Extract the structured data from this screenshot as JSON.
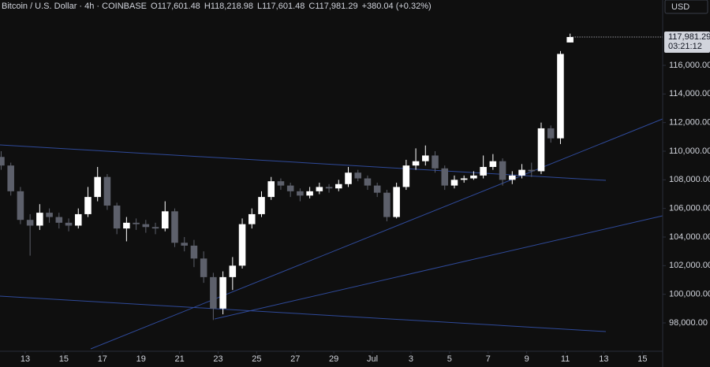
{
  "chart_data": {
    "type": "candlestick",
    "header": {
      "symbol": "Bitcoin / U.S. Dollar · 4h · COINBASE",
      "open_label": "O",
      "open": "117,601.48",
      "high_label": "H",
      "high": "118,218.98",
      "low_label": "L",
      "low": "117,601.48",
      "close_label": "C",
      "close": "117,981.29",
      "change": "+380.04 (+0.32%)"
    },
    "currency": "USD",
    "last_price_label": "117,981.29",
    "countdown": "03:21:12",
    "up_color": "#ffffff",
    "down_color": "#5d606b",
    "grid": false,
    "xlim": [
      11.69,
      46.05
    ],
    "ylim": [
      96018,
      120569
    ],
    "xticks": [
      13,
      15,
      17,
      19,
      21,
      23,
      25,
      27,
      29,
      {
        "value": 31,
        "label": "Jul"
      },
      {
        "value": 33,
        "label": "3"
      },
      {
        "value": 35,
        "label": "5"
      },
      {
        "value": 37,
        "label": "7"
      },
      {
        "value": 39,
        "label": "9"
      },
      {
        "value": 41,
        "label": "11"
      },
      {
        "value": 43,
        "label": "13"
      },
      {
        "value": 45,
        "label": "15"
      }
    ],
    "yticks": [
      {
        "value": 98000,
        "label": "98,000.00"
      },
      {
        "value": 100000,
        "label": "100,000.00"
      },
      {
        "value": 102000,
        "label": "102,000.00"
      },
      {
        "value": 104000,
        "label": "104,000.00"
      },
      {
        "value": 106000,
        "label": "106,000.00"
      },
      {
        "value": 108000,
        "label": "108,000.00"
      },
      {
        "value": 110000,
        "label": "110,000.00"
      },
      {
        "value": 112000,
        "label": "112,000.00"
      },
      {
        "value": 114000,
        "label": "114,000.00"
      },
      {
        "value": 116000,
        "label": "116,000.00"
      }
    ],
    "x": [
      11.75,
      12.25,
      12.75,
      13.25,
      13.75,
      14.25,
      14.75,
      15.25,
      15.75,
      16.25,
      16.75,
      17.25,
      17.75,
      18.25,
      18.75,
      19.25,
      19.75,
      20.25,
      20.75,
      21.25,
      21.75,
      22.25,
      22.75,
      23.25,
      23.75,
      24.25,
      24.75,
      25.25,
      25.75,
      26.25,
      26.75,
      27.25,
      27.75,
      28.25,
      28.75,
      29.25,
      29.75,
      30.25,
      30.75,
      31.25,
      31.75,
      32.25,
      32.75,
      33.25,
      33.75,
      34.25,
      34.75,
      35.25,
      35.75,
      36.25,
      36.75,
      37.25,
      37.75,
      38.25,
      38.75,
      39.25,
      39.75,
      40.25,
      40.75,
      41.25
    ],
    "open": [
      109600,
      109000,
      107200,
      105200,
      104800,
      105700,
      105400,
      105000,
      104800,
      105600,
      106800,
      108200,
      106200,
      104600,
      105000,
      104900,
      104700,
      104600,
      105800,
      103600,
      103400,
      102500,
      101200,
      99000,
      101200,
      102000,
      104900,
      105600,
      106800,
      107900,
      107600,
      107200,
      106900,
      107200,
      107500,
      107400,
      107700,
      108500,
      108100,
      107600,
      107100,
      105400,
      107500,
      109000,
      109300,
      109700,
      108800,
      107600,
      108000,
      108100,
      108300,
      108900,
      109300,
      108000,
      108300,
      108700,
      108600,
      111600,
      110900,
      117601.48
    ],
    "high": [
      110000,
      109200,
      107500,
      105600,
      106300,
      106000,
      105700,
      105300,
      106000,
      107500,
      108900,
      108400,
      106400,
      105400,
      105300,
      105200,
      105000,
      106500,
      106000,
      104000,
      103800,
      103000,
      101500,
      101600,
      102600,
      105300,
      106000,
      107200,
      108200,
      108100,
      107800,
      107400,
      107500,
      107800,
      107700,
      108000,
      108900,
      108700,
      108300,
      107800,
      107300,
      107800,
      109400,
      110200,
      110400,
      110000,
      109000,
      108300,
      108300,
      108600,
      109700,
      109800,
      109500,
      108600,
      109100,
      109200,
      112000,
      111800,
      117000,
      118218.98
    ],
    "low": [
      108700,
      106900,
      104900,
      102700,
      104500,
      105000,
      104600,
      104400,
      104600,
      105400,
      106500,
      105900,
      104200,
      103700,
      104500,
      104300,
      104200,
      104400,
      103300,
      103000,
      101900,
      100800,
      98200,
      98600,
      100300,
      101800,
      104600,
      105400,
      106600,
      107300,
      106800,
      106500,
      106700,
      107000,
      107100,
      107200,
      107500,
      107900,
      107300,
      106800,
      105100,
      105300,
      107300,
      108700,
      109000,
      108500,
      107300,
      107400,
      107800,
      108000,
      108100,
      108700,
      107600,
      107700,
      108100,
      108200,
      108400,
      110600,
      110500,
      117601.48
    ],
    "close": [
      109000,
      107200,
      105200,
      104800,
      105700,
      105400,
      105000,
      104800,
      105600,
      106800,
      108200,
      106200,
      104600,
      105000,
      104900,
      104700,
      104600,
      105800,
      103600,
      103400,
      102500,
      101200,
      99000,
      101200,
      102000,
      104900,
      105600,
      106800,
      107900,
      107600,
      107200,
      106900,
      107200,
      107500,
      107400,
      107700,
      108500,
      108100,
      107600,
      107100,
      105400,
      107500,
      109000,
      109300,
      109700,
      108800,
      107600,
      108000,
      108100,
      108300,
      108900,
      109300,
      108000,
      108300,
      108700,
      108600,
      111600,
      110900,
      116800,
      117981.29
    ]
  }
}
